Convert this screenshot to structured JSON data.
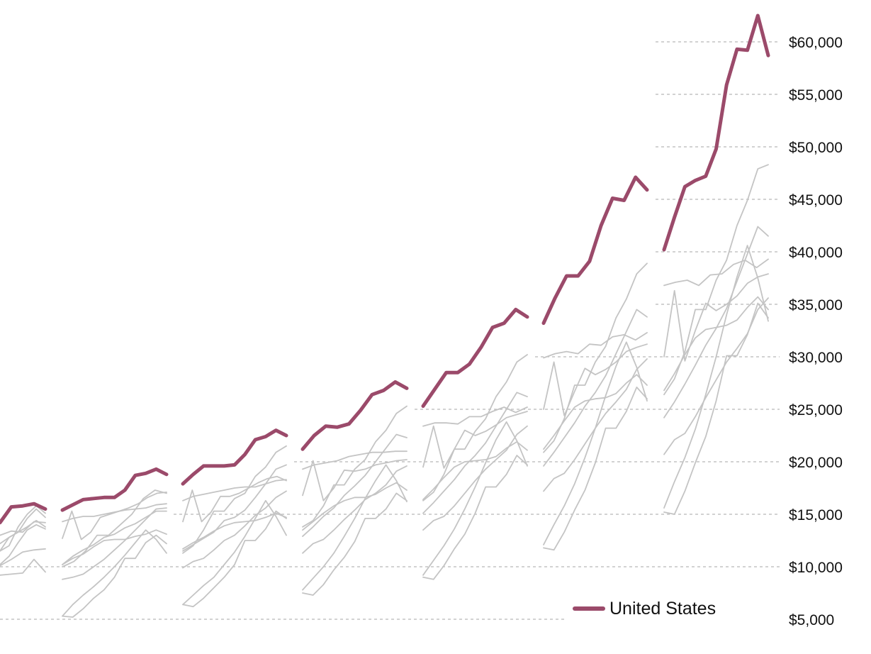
{
  "chart_data": {
    "type": "line",
    "ylim": [
      5000,
      63000
    ],
    "y_ticks": [
      {
        "value": 5000,
        "label": "$5,000"
      },
      {
        "value": 10000,
        "label": "$10,000"
      },
      {
        "value": 15000,
        "label": "$15,000"
      },
      {
        "value": 20000,
        "label": "$20,000"
      },
      {
        "value": 25000,
        "label": "$25,000"
      },
      {
        "value": 30000,
        "label": "$30,000"
      },
      {
        "value": 35000,
        "label": "$35,000"
      },
      {
        "value": 40000,
        "label": "$40,000"
      },
      {
        "value": 45000,
        "label": "$45,000"
      },
      {
        "value": 50000,
        "label": "$50,000"
      },
      {
        "value": 55000,
        "label": "$55,000"
      },
      {
        "value": 60000,
        "label": "$60,000"
      }
    ],
    "grid": true,
    "legend": {
      "position": "bottom-right",
      "entries": [
        {
          "name": "United States",
          "color": "#9b4a6a"
        }
      ]
    },
    "colors": {
      "highlight": "#9b4a6a",
      "others": "#c4c4c4",
      "grid": "#b8b8b8"
    },
    "panels": [
      {
        "us": [
          14200,
          15700,
          15800,
          16000,
          15500
        ],
        "others": [
          [
            10200,
            11000,
            12300,
            13500,
            14000,
            13600
          ],
          [
            11500,
            12800,
            13300,
            13800,
            14400,
            13800
          ],
          [
            9200,
            9300,
            9400,
            10700,
            9500
          ],
          [
            12200,
            12800,
            13300,
            14600,
            15500,
            14700
          ],
          [
            11500,
            12000,
            13800,
            15000,
            15800,
            15100
          ],
          [
            13000,
            13400,
            13300,
            14300,
            14200
          ],
          [
            10100,
            10700,
            11400,
            11600,
            11700
          ]
        ]
      },
      {
        "us": [
          15400,
          15900,
          16400,
          16500,
          16600,
          16600,
          17300,
          18700,
          18900,
          19300,
          18800
        ],
        "others": [
          [
            12700,
            15300,
            12600,
            13300,
            14700,
            15000,
            15300,
            15600,
            16000,
            16600,
            17000,
            17100
          ],
          [
            14300,
            14600,
            14800,
            14800,
            15000,
            15200,
            15400,
            15500,
            15600,
            15900,
            16000
          ],
          [
            10200,
            11000,
            11600,
            12100,
            12800,
            13100,
            13700,
            14100,
            14700,
            15300,
            15300
          ],
          [
            10000,
            10500,
            11500,
            13000,
            13000,
            14000,
            15000,
            16500,
            17300,
            17000
          ],
          [
            8800,
            9000,
            9300,
            10000,
            10700,
            11600,
            12500,
            13500,
            14500,
            15500,
            15600
          ],
          [
            5300,
            5200,
            6000,
            7000,
            7800,
            9000,
            10800,
            10800,
            12300,
            13000,
            12200
          ],
          [
            5300,
            6400,
            7300,
            8100,
            9000,
            10000,
            11100,
            12300,
            13500,
            12600,
            11300
          ],
          [
            10200,
            10800,
            11200,
            11900,
            12500,
            12600,
            12600,
            12900,
            13100,
            13500,
            13100
          ]
        ]
      },
      {
        "us": [
          17900,
          18800,
          19600,
          19600,
          19600,
          19700,
          20700,
          22100,
          22400,
          23000,
          22500
        ],
        "others": [
          [
            14300,
            17300,
            14300,
            15200,
            16700,
            16700,
            17000,
            17500,
            18000,
            18400,
            18600,
            18200
          ],
          [
            16300,
            16700,
            16900,
            17100,
            17300,
            17500,
            17600,
            17600,
            17900,
            18200,
            18300
          ],
          [
            11500,
            12100,
            12700,
            13300,
            14400,
            14700,
            15400,
            16600,
            17900,
            19300,
            19700
          ],
          [
            11300,
            12000,
            13500,
            15300,
            15300,
            16500,
            17000,
            18600,
            19500,
            20900,
            21500
          ],
          [
            9900,
            10500,
            10800,
            11600,
            12500,
            13000,
            13900,
            14900,
            15600,
            16600,
            17200
          ],
          [
            6400,
            6200,
            7000,
            8000,
            9000,
            10200,
            12500,
            12500,
            13600,
            15300,
            14600
          ],
          [
            6400,
            7300,
            8200,
            9000,
            10200,
            11400,
            12900,
            14600,
            16300,
            14800,
            13000
          ],
          [
            11700,
            12300,
            12800,
            13400,
            13900,
            14200,
            14300,
            14400,
            14700,
            15100,
            14700
          ]
        ]
      },
      {
        "us": [
          21200,
          22500,
          23400,
          23300,
          23600,
          24900,
          26400,
          26800,
          27600,
          27000
        ],
        "others": [
          [
            16800,
            20100,
            16300,
            17500,
            19200,
            19100,
            19300,
            19700,
            19900,
            20100,
            20200
          ],
          [
            19300,
            19700,
            19900,
            20100,
            20500,
            20700,
            20900,
            20900,
            21000,
            21000
          ],
          [
            12900,
            13800,
            14800,
            15600,
            16800,
            17700,
            18700,
            20000,
            21300,
            22600,
            22300
          ],
          [
            13800,
            14400,
            15800,
            17800,
            17800,
            19300,
            20200,
            21900,
            23000,
            24600,
            25300
          ],
          [
            11300,
            12200,
            12600,
            13500,
            14500,
            15400,
            16400,
            17000,
            17800,
            19100,
            19600
          ],
          [
            7500,
            7300,
            8300,
            9700,
            10900,
            12400,
            14600,
            14600,
            15500,
            17000,
            16300
          ],
          [
            7800,
            8900,
            10000,
            11300,
            12900,
            14600,
            16500,
            18200,
            19700,
            18200,
            16200
          ],
          [
            13500,
            14300,
            15100,
            15800,
            16300,
            16600,
            16600,
            16900,
            17500,
            18000,
            17300
          ]
        ]
      },
      {
        "us": [
          25300,
          26900,
          28500,
          28500,
          29300,
          30900,
          32800,
          33200,
          34500,
          33800
        ],
        "others": [
          [
            19500,
            23400,
            19400,
            21200,
            23000,
            22500,
            22900,
            23500,
            24200,
            24500,
            24800
          ],
          [
            23400,
            23700,
            23700,
            23600,
            24300,
            24300,
            24800,
            25200,
            24700,
            25200
          ],
          [
            15100,
            16100,
            17200,
            18300,
            19600,
            20600,
            21800,
            23400,
            25000,
            26600,
            26200
          ],
          [
            16300,
            17100,
            18800,
            21200,
            21200,
            22900,
            24100,
            26200,
            27600,
            29500,
            30200
          ],
          [
            13500,
            14400,
            14800,
            15800,
            17000,
            18200,
            19300,
            20200,
            21100,
            22600,
            23400
          ],
          [
            9000,
            8800,
            10100,
            11700,
            13100,
            15100,
            17600,
            17600,
            18800,
            20600,
            19700
          ],
          [
            9200,
            10600,
            12000,
            13600,
            15500,
            17600,
            19900,
            22100,
            23800,
            22000,
            19600
          ],
          [
            16400,
            17400,
            18500,
            19500,
            20000,
            20100,
            20200,
            20500,
            21300,
            21900,
            21100
          ]
        ]
      },
      {
        "us": [
          33200,
          35600,
          37700,
          37700,
          39100,
          42500,
          45100,
          44900,
          47100,
          45900
        ],
        "others": [
          [
            25000,
            29500,
            24400,
            26700,
            28900,
            28300,
            28800,
            29500,
            30500,
            30900,
            31200
          ],
          [
            29900,
            30300,
            30500,
            30300,
            31200,
            31100,
            31900,
            32100,
            31600,
            32300
          ],
          [
            19600,
            20900,
            22300,
            23700,
            25300,
            26600,
            28200,
            30300,
            32400,
            34500,
            33800
          ],
          [
            20900,
            22000,
            24100,
            27300,
            27300,
            29500,
            31000,
            33700,
            35500,
            37900,
            38900
          ],
          [
            17200,
            18400,
            18900,
            20200,
            21700,
            23200,
            24600,
            25700,
            26900,
            28800,
            29800
          ],
          [
            11800,
            11600,
            13300,
            15400,
            17300,
            19900,
            23200,
            23200,
            24800,
            27100,
            26000
          ],
          [
            12100,
            14000,
            15800,
            17900,
            20400,
            23200,
            26300,
            29100,
            31400,
            29000,
            25800
          ],
          [
            21200,
            22500,
            23900,
            25200,
            25800,
            26000,
            26100,
            26500,
            27500,
            28300,
            27300
          ]
        ]
      },
      {
        "us": [
          40200,
          43300,
          46200,
          46800,
          47200,
          49800,
          55900,
          59300,
          59200,
          62500,
          58700
        ],
        "others": [
          [
            30000,
            36300,
            29600,
            32500,
            35100,
            34400,
            35000,
            35800,
            37000,
            37600,
            37900
          ],
          [
            36800,
            37100,
            37300,
            36800,
            37800,
            37900,
            38800,
            39200,
            38500,
            39300
          ],
          [
            24200,
            25700,
            27400,
            29200,
            31100,
            32700,
            34600,
            37200,
            39800,
            42400,
            41500
          ],
          [
            26400,
            27900,
            30500,
            34500,
            34500,
            37300,
            39200,
            42500,
            44900,
            47900,
            48300
          ],
          [
            20700,
            22100,
            22700,
            24300,
            26100,
            27800,
            29500,
            30800,
            32200,
            34500,
            35600
          ],
          [
            15200,
            15000,
            17200,
            19900,
            22400,
            25800,
            30100,
            30100,
            32100,
            35100,
            33700
          ],
          [
            15600,
            18100,
            20400,
            23100,
            26400,
            30000,
            34000,
            37600,
            40600,
            37500,
            33400
          ],
          [
            26800,
            28400,
            30200,
            31800,
            32600,
            32800,
            33000,
            33500,
            34700,
            35700,
            34500
          ]
        ]
      }
    ]
  }
}
